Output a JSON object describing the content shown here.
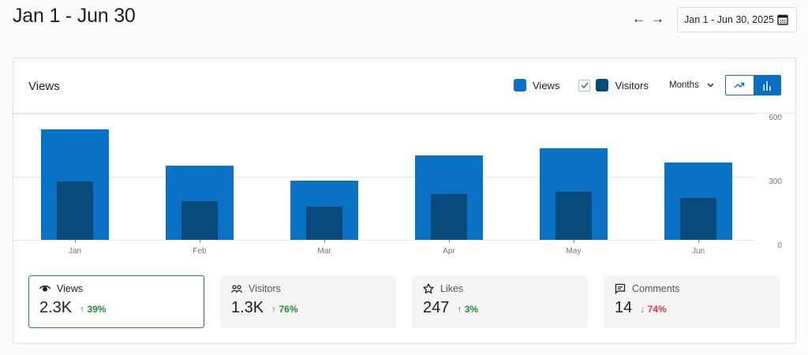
{
  "page": {
    "title": "Jan 1 - Jun 30",
    "prev_icon": "arrow-left-icon",
    "next_icon": "arrow-right-icon",
    "date_range": "Jan 1 - Jun 30, 2025",
    "calendar_icon": "calendar-icon"
  },
  "card": {
    "title": "Views",
    "legend": [
      {
        "label": "Views",
        "color": "#0a72c4"
      },
      {
        "label": "Visitors",
        "color": "#064a7c",
        "checked": true
      }
    ],
    "period": "Months",
    "chart_types": [
      {
        "name": "line",
        "icon": "trending-up-icon",
        "active": false
      },
      {
        "name": "bar",
        "icon": "bar-chart-icon",
        "active": true
      }
    ]
  },
  "chart_data": {
    "type": "bar",
    "title": "Views",
    "categories": [
      "Jan",
      "Feb",
      "Mar",
      "Apr",
      "May",
      "Jun"
    ],
    "series": [
      {
        "name": "Views",
        "color": "#0a72c4",
        "values": [
          525,
          353,
          281,
          401,
          435,
          368
        ]
      },
      {
        "name": "Visitors",
        "color": "#064a7c",
        "values": [
          278,
          184,
          158,
          218,
          229,
          199
        ]
      }
    ],
    "yticks": [
      "600",
      "300",
      "0"
    ],
    "ylim": [
      0,
      600
    ],
    "grid": true,
    "legend_position": "top-right",
    "xlabel": "",
    "ylabel": ""
  },
  "stats": [
    {
      "label": "Views",
      "icon": "eye-icon",
      "value": "2.3K",
      "change": "39%",
      "direction": "up",
      "selected": true
    },
    {
      "label": "Visitors",
      "icon": "people-icon",
      "value": "1.3K",
      "change": "76%",
      "direction": "up",
      "selected": false
    },
    {
      "label": "Likes",
      "icon": "star-icon",
      "value": "247",
      "change": "3%",
      "direction": "up",
      "selected": false
    },
    {
      "label": "Comments",
      "icon": "comment-icon",
      "value": "14",
      "change": "74%",
      "direction": "down",
      "selected": false
    }
  ],
  "arrows": {
    "up": "↑",
    "down": "↓",
    "left": "←",
    "right": "→"
  }
}
